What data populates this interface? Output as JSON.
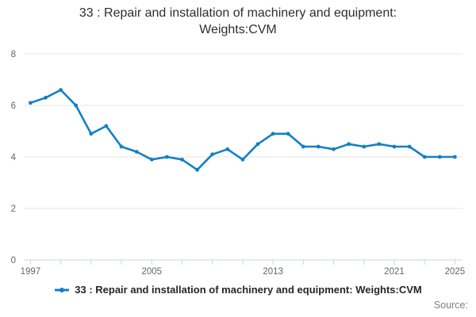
{
  "title": {
    "full": "33 : Repair and installation of machinery and equipment: Weights:CVM",
    "line1": "33 : Repair and installation of machinery and equipment:",
    "line2": "Weights:CVM"
  },
  "legend": {
    "label": "33 : Repair and installation of machinery and equipment: Weights:CVM",
    "marker": "line-with-dot"
  },
  "source_label": "Source:",
  "chart_data": {
    "type": "line",
    "title": "33 : Repair and installation of machinery and equipment: Weights:CVM",
    "x": [
      1997,
      1998,
      1999,
      2000,
      2001,
      2002,
      2003,
      2004,
      2005,
      2006,
      2007,
      2008,
      2009,
      2010,
      2011,
      2012,
      2013,
      2014,
      2015,
      2016,
      2017,
      2018,
      2019,
      2020,
      2021,
      2022,
      2023,
      2024,
      2025
    ],
    "series": [
      {
        "name": "33 : Repair and installation of machinery and equipment: Weights:CVM",
        "color": "#1380c4",
        "values": [
          6.1,
          6.3,
          6.6,
          6.0,
          4.9,
          5.2,
          4.4,
          4.2,
          3.9,
          4.0,
          3.9,
          3.5,
          4.1,
          4.3,
          3.9,
          4.5,
          4.9,
          4.9,
          4.4,
          4.4,
          4.3,
          4.5,
          4.4,
          4.5,
          4.4,
          4.4,
          4.0,
          4.0,
          4.0
        ]
      }
    ],
    "xlabel": "",
    "ylabel": "",
    "ylim": [
      0,
      8
    ],
    "yticks": [
      0,
      2,
      4,
      6,
      8
    ],
    "xtick_labels": [
      1997,
      2005,
      2013,
      2021,
      2025
    ],
    "xticks_minor": [
      1997,
      1999,
      2001,
      2003,
      2005,
      2007,
      2009,
      2011,
      2013,
      2015,
      2017,
      2019,
      2021,
      2023,
      2025
    ],
    "grid": "horizontal-only",
    "legend_position": "bottom",
    "colors": {
      "line": "#1380c4",
      "grid": "#e6e6e6",
      "axis": "#c9d3dd",
      "tick_label": "#666666",
      "title_text": "#2e2e2e",
      "legend_text": "#262626",
      "source_text": "#808080"
    }
  }
}
